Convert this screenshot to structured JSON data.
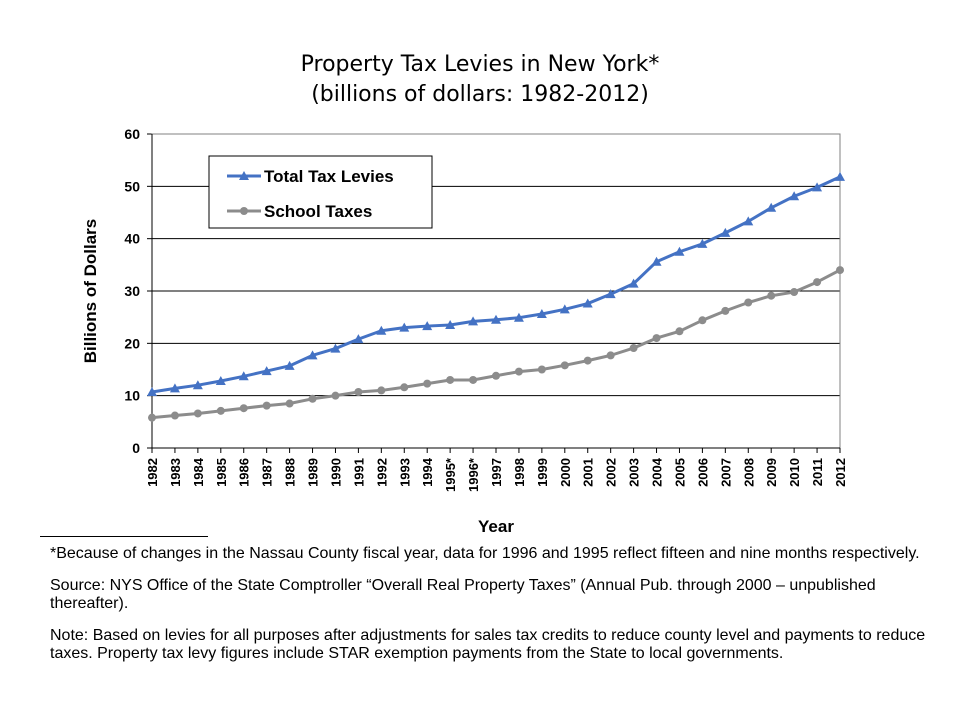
{
  "chart_data": {
    "type": "line",
    "title": "Property Tax Levies in New York*",
    "subtitle": "(billions of dollars: 1982-2012)",
    "xlabel": "Year",
    "ylabel": "Billions of Dollars",
    "ylim": [
      0,
      60
    ],
    "yticks": [
      0,
      10,
      20,
      30,
      40,
      50,
      60
    ],
    "grid": true,
    "legend_position": "top-left",
    "categories": [
      "1982",
      "1983",
      "1984",
      "1985",
      "1986",
      "1987",
      "1988",
      "1989",
      "1990",
      "1991",
      "1992",
      "1993",
      "1994",
      "1995*",
      "1996*",
      "1997",
      "1998",
      "1999",
      "2000",
      "2001",
      "2002",
      "2003",
      "2004",
      "2005",
      "2006",
      "2007",
      "2008",
      "2009",
      "2010",
      "2011",
      "2012"
    ],
    "series": [
      {
        "name": "Total Tax Levies",
        "color": "#4472C4",
        "marker": "triangle",
        "values": [
          10.7,
          11.4,
          12.0,
          12.8,
          13.7,
          14.7,
          15.7,
          17.7,
          19.0,
          20.8,
          22.4,
          23.0,
          23.3,
          23.5,
          24.2,
          24.5,
          24.9,
          25.6,
          26.5,
          27.6,
          29.4,
          31.4,
          35.6,
          37.5,
          39.0,
          41.1,
          43.3,
          45.9,
          48.1,
          49.8,
          51.8
        ]
      },
      {
        "name": "School Taxes",
        "color": "#8C8C8C",
        "marker": "circle",
        "values": [
          5.8,
          6.2,
          6.6,
          7.1,
          7.6,
          8.1,
          8.5,
          9.4,
          10.0,
          10.7,
          11.0,
          11.6,
          12.3,
          13.0,
          13.0,
          13.8,
          14.6,
          15.0,
          15.8,
          16.7,
          17.7,
          19.1,
          21.0,
          22.3,
          24.4,
          26.2,
          27.8,
          29.1,
          29.8,
          31.7,
          34.0
        ]
      }
    ]
  },
  "notes": {
    "footnote": "*Because of changes in the Nassau County fiscal year, data for 1996 and 1995 reflect fifteen and nine months respectively.",
    "source": "Source:  NYS Office of the State Comptroller “Overall Real Property Taxes” (Annual Pub. through 2000 – unpublished thereafter).",
    "note": "Note:  Based on levies for all purposes after adjustments for sales tax credits to reduce county level and payments to reduce taxes.  Property tax levy figures include STAR exemption payments from the State to local governments."
  }
}
